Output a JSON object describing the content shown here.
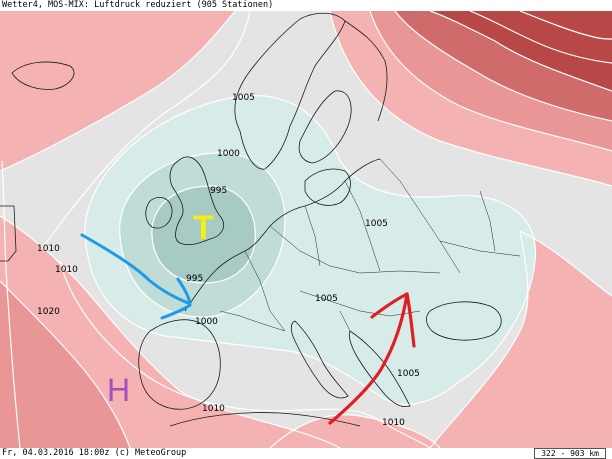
{
  "header": {
    "title": "Wetter4, MOS-MIX: Luftdruck reduziert (905 Stationen)"
  },
  "footer": {
    "timestamp": "Fr, 04.03.2016 18:00z (c) MeteoGroup",
    "scale": "322 - 903 km"
  },
  "isobar_labels": [
    {
      "text": "1005",
      "unit": "hPa"
    },
    {
      "text": "1000",
      "unit": "hPa"
    },
    {
      "text": "995",
      "unit": "hPa"
    },
    {
      "text": "995",
      "unit": "hPa"
    },
    {
      "text": "1000",
      "unit": "hPa"
    },
    {
      "text": "1005",
      "unit": "hPa"
    },
    {
      "text": "1005",
      "unit": "hPa"
    },
    {
      "text": "1005",
      "unit": "hPa"
    },
    {
      "text": "1010",
      "unit": "hPa"
    },
    {
      "text": "1010",
      "unit": "hPa"
    },
    {
      "text": "1020",
      "unit": "hPa"
    },
    {
      "text": "1010",
      "unit": "hPa"
    },
    {
      "text": "1010",
      "unit": "hPa"
    }
  ],
  "pressure_centers": {
    "low": {
      "symbol": "T",
      "color": "#f2ee1a"
    },
    "high": {
      "symbol": "H",
      "color": "#a24fc2"
    }
  },
  "colors": {
    "background_neutral": "#e4e4e4",
    "low_pressure_zone": "#d7ece8",
    "low_pressure_core": "#a8cac4",
    "high_pressure_light": "#f4b2b2",
    "high_pressure_mid": "#e58b8b",
    "high_pressure_dark": "#b84848",
    "cold_air_arrow": "#1e9be6",
    "warm_air_arrow": "#e01e26",
    "coastline": "#1a1a1a"
  }
}
